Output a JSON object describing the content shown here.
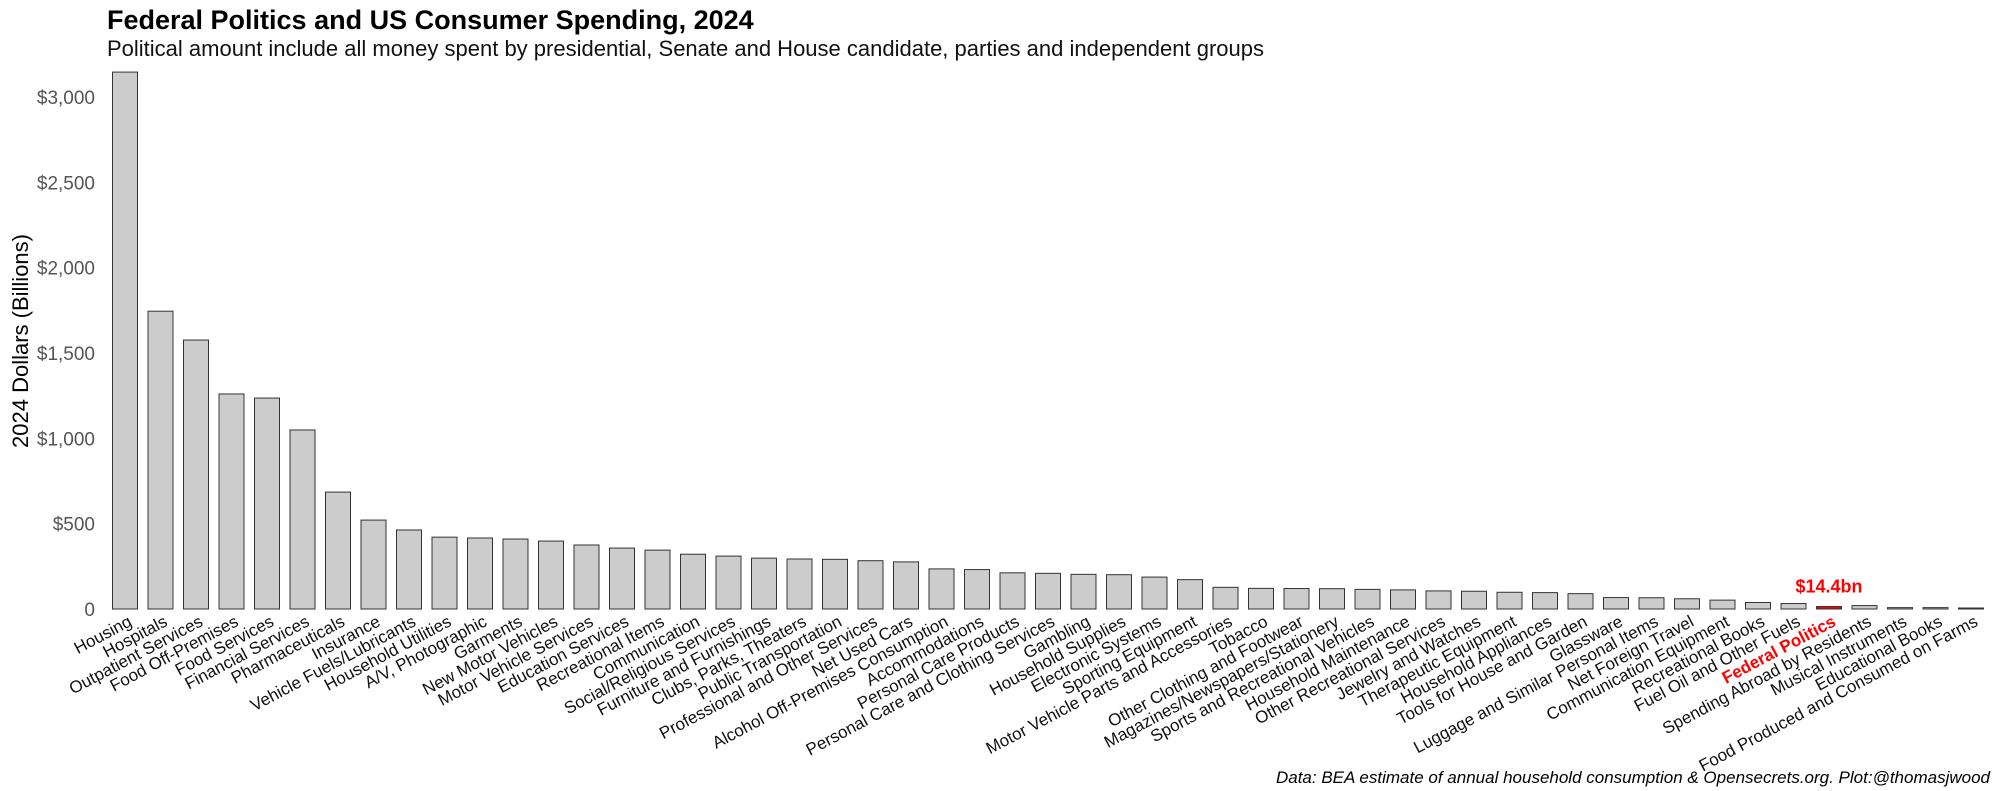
{
  "chart_data": {
    "type": "bar",
    "title": "Federal Politics and US Consumer Spending, 2024",
    "subtitle": "Political amount include all money spent by presidential, Senate and House candidate, parties and independent groups",
    "xlabel": "",
    "ylabel": "2024 Dollars (Billions)",
    "ylim": [
      0,
      3150
    ],
    "yticks": [
      0,
      500,
      1000,
      1500,
      2000,
      2500,
      3000
    ],
    "ytick_labels": [
      "0",
      "$500",
      "$1,000",
      "$1,500",
      "$2,000",
      "$2,500",
      "$3,000"
    ],
    "grid": false,
    "highlight_category": "Federal Politics",
    "highlight_color": "#ff0000",
    "bar_color": "#cccccc",
    "annotation": {
      "category": "Federal Politics",
      "text": "$14.4bn"
    },
    "caption": "Data: BEA estimate of annual household consumption & Opensecrets.org. Plot:@thomasjwood",
    "categories": [
      "Housing",
      "Hospitals",
      "Outpatient Services",
      "Food Off-Premises",
      "Food Services",
      "Financial Services",
      "Pharmaceuticals",
      "Insurance",
      "Vehicle Fuels/Lubricants",
      "Household Utilities",
      "A/V, Photographic",
      "Garments",
      "New Motor Vehicles",
      "Motor Vehicle Services",
      "Education Services",
      "Recreational Items",
      "Communication",
      "Social/Religious Services",
      "Furniture and Furnishings",
      "Clubs, Parks, Theaters",
      "Public Transportation",
      "Professional and Other Services",
      "Net Used Cars",
      "Alcohol Off-Premises Consumption",
      "Accommodations",
      "Personal Care Products",
      "Personal Care and Clothing Services",
      "Gambling",
      "Household Supplies",
      "Electronic Systems",
      "Sporting Equipment",
      "Motor Vehicle Parts and Accessories",
      "Tobacco",
      "Other Clothing and Footwear",
      "Magazines/Newspapers/Stationery",
      "Sports and Recreational Vehicles",
      "Household Maintenance",
      "Other Recreational Services",
      "Jewelry and Watches",
      "Therapeutic Equipment",
      "Household Appliances",
      "Tools for House and Garden",
      "Glassware",
      "Luggage and Similar Personal Items",
      "Net Foreign Travel",
      "Communication Equipment",
      "Recreational Books",
      "Fuel Oil and Other Fuels",
      "Federal Politics",
      "Spending Abroad by Residents",
      "Musical Instruments",
      "Educational Books",
      "Food Produced and Consumed on Farms"
    ],
    "values": [
      3146,
      1745,
      1576,
      1260,
      1236,
      1049,
      685,
      521,
      463,
      421,
      416,
      410,
      398,
      375,
      357,
      345,
      321,
      310,
      298,
      293,
      291,
      283,
      276,
      235,
      231,
      212,
      209,
      203,
      201,
      187,
      172,
      127,
      121,
      120,
      119,
      115,
      112,
      106,
      104,
      98,
      96,
      90,
      67,
      66,
      60,
      52,
      38,
      32,
      14.4,
      20,
      8,
      8,
      3
    ]
  }
}
